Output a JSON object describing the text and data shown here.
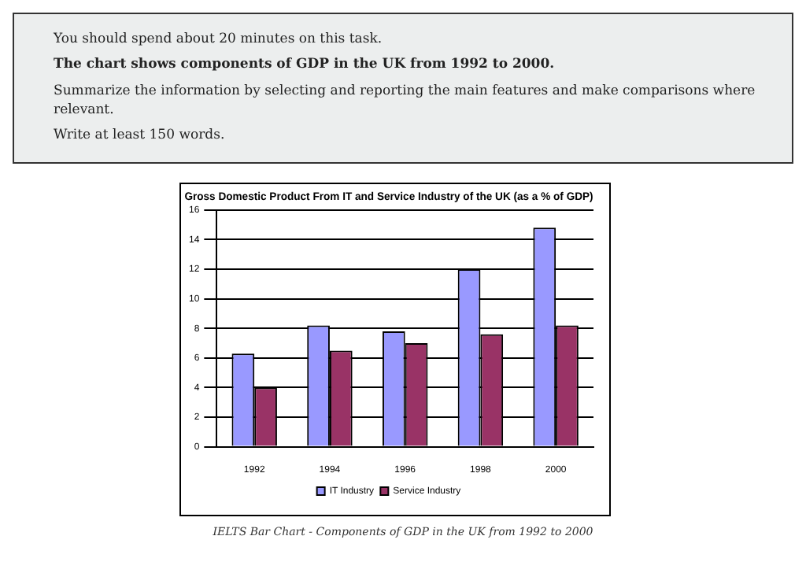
{
  "chart_data": {
    "type": "bar",
    "title": "Gross Domestic Product From IT and Service Industry of the UK (as a % of GDP)",
    "annotations": [
      "You should spend about 20 minutes on this task.",
      "The chart shows components of GDP in the UK from 1992 to 2000.",
      "Summarize the information by selecting and reporting the main features and make comparisons where relevant.",
      "Write at least 150 words.",
      "IELTS Bar Chart - Components of GDP in the UK from 1992 to 2000"
    ],
    "categories": [
      "1992",
      "1994",
      "1996",
      "1998",
      "2000"
    ],
    "series": [
      {
        "name": "IT Industry",
        "color": "#9999ff",
        "values": [
          6.3,
          8.2,
          7.8,
          12,
          14.8
        ]
      },
      {
        "name": "Service Industry",
        "color": "#993366",
        "values": [
          4,
          6.5,
          7,
          7.6,
          8.2
        ]
      }
    ],
    "ylim": [
      0,
      16
    ],
    "yticks": [
      0,
      2,
      4,
      6,
      8,
      10,
      12,
      14,
      16
    ],
    "grid": "y",
    "legend": "bottom"
  }
}
